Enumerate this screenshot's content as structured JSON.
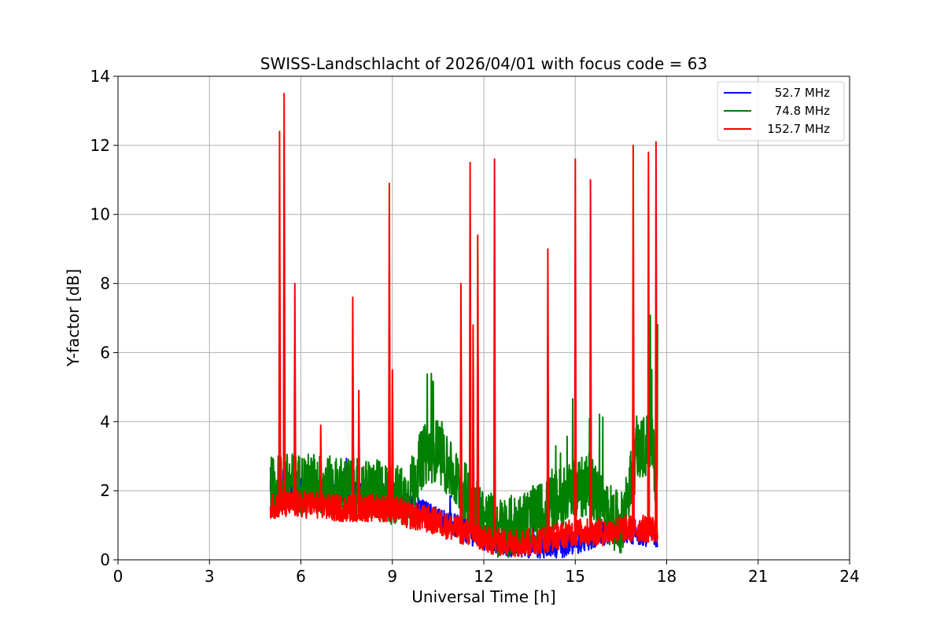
{
  "chart_data": {
    "type": "line",
    "title": "SWISS-Landschlacht of 2026/04/01 with focus code = 63",
    "xlabel": "Universal Time [h]",
    "ylabel": "Y-factor [dB]",
    "xlim": [
      0,
      24
    ],
    "ylim": [
      0,
      14
    ],
    "xticks": [
      "0",
      "3",
      "6",
      "9",
      "12",
      "15",
      "18",
      "21",
      "24"
    ],
    "yticks": [
      "0",
      "2",
      "4",
      "6",
      "8",
      "10",
      "12",
      "14"
    ],
    "grid": true,
    "legend_position": "top-right",
    "series": [
      {
        "name": "52.7 MHz",
        "color": "#0000ff",
        "x": [
          5.0,
          5.5,
          6.0,
          6.5,
          7.0,
          7.5,
          8.0,
          8.5,
          9.0,
          9.5,
          10.0,
          10.5,
          11.0,
          11.5,
          12.0,
          12.5,
          13.0,
          13.5,
          14.0,
          14.5,
          15.0,
          15.5,
          16.0,
          16.5,
          17.0,
          17.5,
          17.7
        ],
        "values": [
          1.9,
          1.9,
          2.0,
          2.0,
          2.0,
          1.9,
          1.9,
          1.9,
          1.8,
          1.6,
          1.4,
          1.2,
          1.0,
          0.8,
          0.6,
          0.5,
          0.4,
          0.4,
          0.4,
          0.4,
          0.5,
          0.6,
          0.8,
          0.8,
          0.8,
          0.7,
          0.6
        ]
      },
      {
        "name": "74.8 MHz",
        "color": "#008000",
        "x": [
          5.0,
          5.5,
          6.0,
          6.5,
          7.0,
          7.5,
          8.0,
          8.5,
          9.0,
          9.5,
          10.0,
          10.5,
          11.0,
          11.5,
          12.0,
          12.5,
          13.0,
          13.5,
          14.0,
          14.5,
          15.0,
          15.5,
          16.0,
          16.5,
          17.0,
          17.5,
          17.7
        ],
        "values": [
          2.1,
          2.2,
          2.2,
          2.2,
          2.1,
          2.1,
          2.0,
          2.0,
          1.9,
          1.8,
          3.0,
          3.2,
          2.4,
          1.8,
          1.2,
          0.9,
          1.0,
          1.2,
          1.4,
          1.8,
          2.0,
          2.2,
          1.4,
          1.0,
          3.0,
          3.5,
          2.0
        ]
      },
      {
        "name": "152.7 MHz",
        "color": "#ff0000",
        "x": [
          5.0,
          5.5,
          6.0,
          6.5,
          7.0,
          7.5,
          8.0,
          8.5,
          9.0,
          9.5,
          10.0,
          10.5,
          11.0,
          11.5,
          12.0,
          12.5,
          13.0,
          13.5,
          14.0,
          14.5,
          15.0,
          15.5,
          16.0,
          16.5,
          17.0,
          17.5,
          17.7
        ],
        "values": [
          1.6,
          1.6,
          1.6,
          1.6,
          1.5,
          1.5,
          1.5,
          1.5,
          1.5,
          1.3,
          1.2,
          1.1,
          0.9,
          0.8,
          0.6,
          0.5,
          0.5,
          0.5,
          0.6,
          0.7,
          0.8,
          0.8,
          0.8,
          0.9,
          0.9,
          0.9,
          0.9
        ]
      }
    ],
    "peaks_152_7MHz": [
      {
        "x": 5.3,
        "y": 12.4
      },
      {
        "x": 5.45,
        "y": 13.5
      },
      {
        "x": 5.8,
        "y": 8.0
      },
      {
        "x": 6.65,
        "y": 3.9
      },
      {
        "x": 7.7,
        "y": 7.6
      },
      {
        "x": 7.9,
        "y": 4.9
      },
      {
        "x": 8.9,
        "y": 10.9
      },
      {
        "x": 9.0,
        "y": 5.5
      },
      {
        "x": 11.25,
        "y": 8.0
      },
      {
        "x": 11.55,
        "y": 11.5
      },
      {
        "x": 11.65,
        "y": 6.8
      },
      {
        "x": 11.8,
        "y": 9.4
      },
      {
        "x": 12.35,
        "y": 11.6
      },
      {
        "x": 14.1,
        "y": 9.0
      },
      {
        "x": 15.0,
        "y": 11.6
      },
      {
        "x": 15.5,
        "y": 11.0
      },
      {
        "x": 16.9,
        "y": 12.0
      },
      {
        "x": 17.4,
        "y": 11.8
      },
      {
        "x": 17.65,
        "y": 12.1
      }
    ]
  }
}
